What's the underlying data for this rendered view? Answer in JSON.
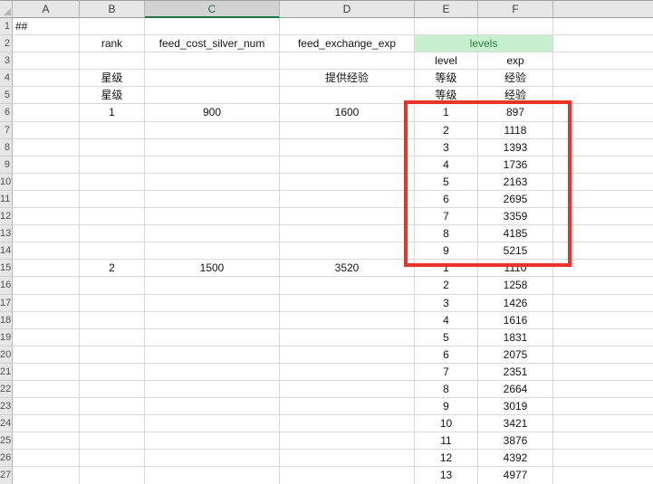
{
  "sheet": {
    "selected_column": "C",
    "column_headers": [
      "A",
      "B",
      "C",
      "D",
      "E",
      "F",
      ""
    ],
    "merged_header": {
      "range": "E2:F2",
      "label": "levels"
    },
    "rows": [
      {
        "n": "1",
        "A": "##"
      },
      {
        "n": "2",
        "B": "rank",
        "C": "feed_cost_silver_num",
        "D": "feed_exchange_exp",
        "EF": "levels"
      },
      {
        "n": "3",
        "E": "level",
        "F": "exp"
      },
      {
        "n": "4",
        "B": "星级",
        "D": "提供经验",
        "E": "等级",
        "F": "经验"
      },
      {
        "n": "5",
        "B": "星级",
        "E": "等级",
        "F": "经验"
      },
      {
        "n": "6",
        "B": "1",
        "C": "900",
        "D": "1600",
        "E": "1",
        "F": "897"
      },
      {
        "n": "7",
        "E": "2",
        "F": "1118"
      },
      {
        "n": "8",
        "E": "3",
        "F": "1393"
      },
      {
        "n": "9",
        "E": "4",
        "F": "1736"
      },
      {
        "n": "10",
        "E": "5",
        "F": "2163"
      },
      {
        "n": "11",
        "E": "6",
        "F": "2695"
      },
      {
        "n": "12",
        "E": "7",
        "F": "3359"
      },
      {
        "n": "13",
        "E": "8",
        "F": "4185"
      },
      {
        "n": "14",
        "E": "9",
        "F": "5215"
      },
      {
        "n": "15",
        "B": "2",
        "C": "1500",
        "D": "3520",
        "E": "1",
        "F": "1110"
      },
      {
        "n": "16",
        "E": "2",
        "F": "1258"
      },
      {
        "n": "17",
        "E": "3",
        "F": "1426"
      },
      {
        "n": "18",
        "E": "4",
        "F": "1616"
      },
      {
        "n": "19",
        "E": "5",
        "F": "1831"
      },
      {
        "n": "20",
        "E": "6",
        "F": "2075"
      },
      {
        "n": "21",
        "E": "7",
        "F": "2351"
      },
      {
        "n": "22",
        "E": "8",
        "F": "2664"
      },
      {
        "n": "23",
        "E": "9",
        "F": "3019"
      },
      {
        "n": "24",
        "E": "10",
        "F": "3421"
      },
      {
        "n": "25",
        "E": "11",
        "F": "3876"
      },
      {
        "n": "26",
        "E": "12",
        "F": "4392"
      },
      {
        "n": "27",
        "E": "13",
        "F": "4977"
      }
    ],
    "annotation": {
      "type": "red-rectangle",
      "highlighted_range": "E6:F14",
      "color": "#e9332a"
    },
    "colors": {
      "selected_header_green": "#217346",
      "levels_cell_bg": "#c6efce",
      "levels_cell_text": "#2f7d3f",
      "header_bg": "#e6e6e6",
      "gridline": "#d9d9d9"
    }
  }
}
